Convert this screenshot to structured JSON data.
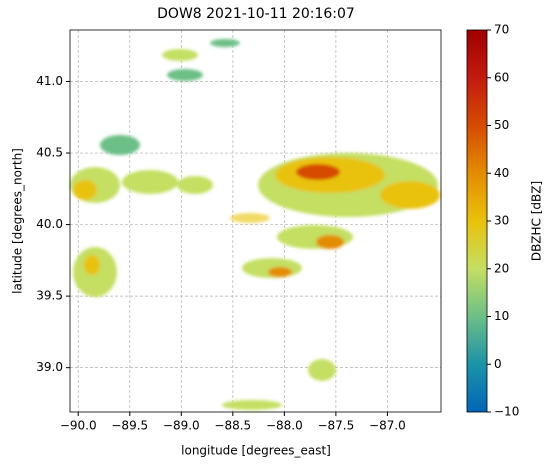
{
  "chart_data": {
    "type": "radar-map",
    "title": "DOW8 2021-10-11 20:16:07",
    "xlabel": "longitude [degrees_east]",
    "ylabel": "latitude [degrees_north]",
    "xlim": [
      -90.08,
      -86.48
    ],
    "ylim": [
      38.69,
      41.36
    ],
    "xticks": [
      {
        "value": -90,
        "label": "−90.0"
      },
      {
        "value": -89.5,
        "label": "−89.5"
      },
      {
        "value": -89,
        "label": "−89.0"
      },
      {
        "value": -88.5,
        "label": "−88.5"
      },
      {
        "value": -88,
        "label": "−88.0"
      },
      {
        "value": -87.5,
        "label": "−87.5"
      },
      {
        "value": -87,
        "label": "−87.0"
      }
    ],
    "yticks": [
      {
        "value": 39,
        "label": "39.0"
      },
      {
        "value": 39.5,
        "label": "39.5"
      },
      {
        "value": 40,
        "label": "40.0"
      },
      {
        "value": 40.5,
        "label": "40.5"
      },
      {
        "value": 41,
        "label": "41.0"
      }
    ],
    "grid": true,
    "colorbar": {
      "label": "DBZHC [dBZ]",
      "lim": [
        -10,
        70
      ],
      "ticks": [
        {
          "value": -10,
          "label": "−10"
        },
        0,
        10,
        20,
        30,
        40,
        50,
        60,
        70
      ],
      "colormap": [
        "#0066b8",
        "#1c93a8",
        "#6cbf86",
        "#c4df62",
        "#e9c20a",
        "#e48c00",
        "#d64b00",
        "#c41a0e",
        "#a00000"
      ]
    }
  }
}
